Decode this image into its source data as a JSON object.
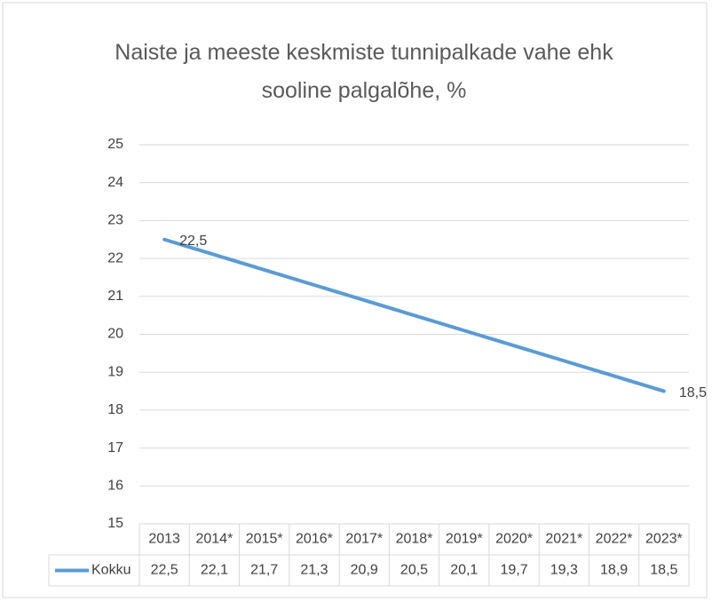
{
  "chart_data": {
    "type": "line",
    "title": "Naiste ja meeste keskmiste tunnipalkade vahe ehk sooline palgalõhe, %",
    "categories": [
      "2013",
      "2014*",
      "2015*",
      "2016*",
      "2017*",
      "2018*",
      "2019*",
      "2020*",
      "2021*",
      "2022*",
      "2023*"
    ],
    "series": [
      {
        "name": "Kokku",
        "color": "#5b9bd5",
        "values": [
          22.5,
          22.1,
          21.7,
          21.3,
          20.9,
          20.5,
          20.1,
          19.7,
          19.3,
          18.9,
          18.5
        ],
        "value_labels": [
          "22,5",
          "22,1",
          "21,7",
          "21,3",
          "20,9",
          "20,5",
          "20,1",
          "19,7",
          "19,3",
          "18,9",
          "18,5"
        ]
      }
    ],
    "ylim": [
      15,
      25
    ],
    "yticks": [
      15,
      16,
      17,
      18,
      19,
      20,
      21,
      22,
      23,
      24,
      25
    ],
    "grid": true
  }
}
